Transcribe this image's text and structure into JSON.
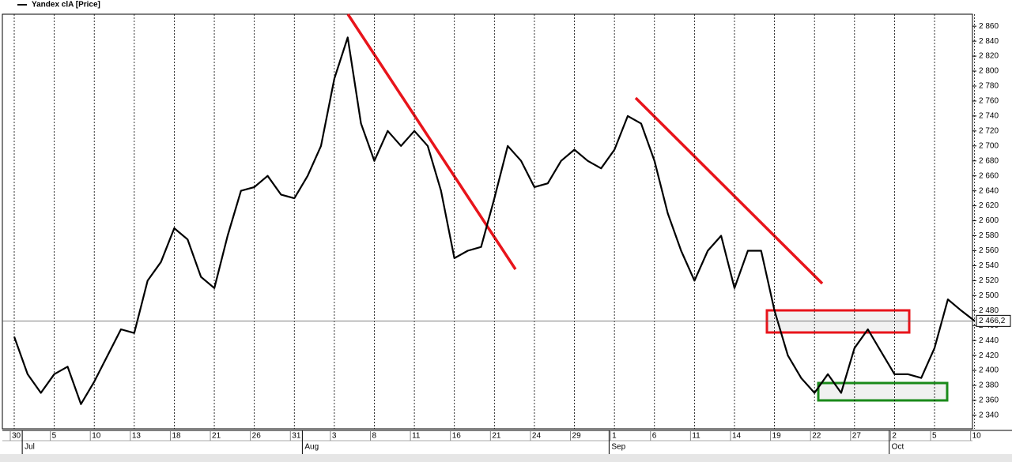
{
  "chart_data": {
    "type": "line",
    "legend": "Yandex clA [Price]",
    "categories": [
      "30",
      null,
      null,
      "5",
      null,
      null,
      "10",
      null,
      null,
      "13",
      null,
      null,
      "18",
      null,
      null,
      "21",
      null,
      null,
      "26",
      null,
      null,
      "31",
      null,
      null,
      "3",
      null,
      null,
      "8",
      null,
      null,
      "11",
      null,
      null,
      "16",
      null,
      null,
      "21",
      null,
      null,
      "24",
      null,
      null,
      "29",
      null,
      null,
      "1",
      null,
      null,
      "6",
      null,
      null,
      "11",
      null,
      null,
      "14",
      null,
      null,
      "19",
      null,
      null,
      "22",
      null,
      null,
      "27",
      null,
      null,
      "2",
      null,
      null,
      "5",
      null,
      null,
      "10"
    ],
    "months": [
      {
        "label": "Jul",
        "start": 1
      },
      {
        "label": "Aug",
        "start": 22
      },
      {
        "label": "Sep",
        "start": 45
      },
      {
        "label": "Oct",
        "start": 66
      }
    ],
    "series": [
      {
        "name": "Yandex clA [Price]",
        "color": "#000000",
        "values": [
          2445,
          2395,
          2370,
          2395,
          2405,
          2355,
          2385,
          2420,
          2455,
          2450,
          2520,
          2545,
          2590,
          2575,
          2525,
          2510,
          2580,
          2640,
          2645,
          2660,
          2635,
          2630,
          2660,
          2700,
          2790,
          2845,
          2730,
          2680,
          2720,
          2700,
          2720,
          2700,
          2640,
          2550,
          2560,
          2565,
          2630,
          2700,
          2680,
          2645,
          2650,
          2680,
          2695,
          2680,
          2670,
          2695,
          2740,
          2730,
          2680,
          2610,
          2560,
          2520,
          2560,
          2580,
          2510,
          2560,
          2560,
          2480,
          2420,
          2390,
          2370,
          2395,
          2370,
          2430,
          2455,
          2425,
          2395,
          2395,
          2390,
          2430,
          2495,
          2480,
          2466.2
        ]
      }
    ],
    "ylim": [
      2322,
      2876
    ],
    "yticks": [
      {
        "value": 2340,
        "label": "2 340"
      },
      {
        "value": 2360,
        "label": "2 360"
      },
      {
        "value": 2380,
        "label": "2 380"
      },
      {
        "value": 2400,
        "label": "2 400"
      },
      {
        "value": 2420,
        "label": "2 420"
      },
      {
        "value": 2440,
        "label": "2 440"
      },
      {
        "value": 2460,
        "label": "2 460"
      },
      {
        "value": 2480,
        "label": "2 480"
      },
      {
        "value": 2500,
        "label": "2 500"
      },
      {
        "value": 2520,
        "label": "2 520"
      },
      {
        "value": 2540,
        "label": "2 540"
      },
      {
        "value": 2560,
        "label": "2 560"
      },
      {
        "value": 2580,
        "label": "2 580"
      },
      {
        "value": 2600,
        "label": "2 600"
      },
      {
        "value": 2620,
        "label": "2 620"
      },
      {
        "value": 2640,
        "label": "2 640"
      },
      {
        "value": 2660,
        "label": "2 660"
      },
      {
        "value": 2680,
        "label": "2 680"
      },
      {
        "value": 2700,
        "label": "2 700"
      },
      {
        "value": 2720,
        "label": "2 720"
      },
      {
        "value": 2740,
        "label": "2 740"
      },
      {
        "value": 2760,
        "label": "2 760"
      },
      {
        "value": 2780,
        "label": "2 780"
      },
      {
        "value": 2800,
        "label": "2 800"
      },
      {
        "value": 2820,
        "label": "2 820"
      },
      {
        "value": 2840,
        "label": "2 840"
      },
      {
        "value": 2860,
        "label": "2 860"
      }
    ],
    "price_marker": {
      "value": 2466.2,
      "label": "2 466,2"
    },
    "grid": true
  }
}
